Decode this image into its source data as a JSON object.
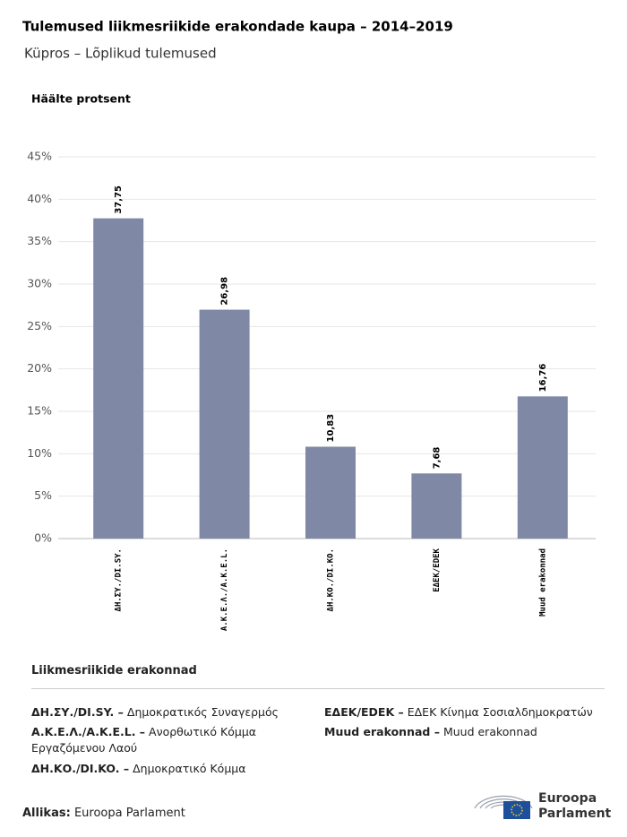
{
  "chart_data": {
    "type": "bar",
    "title": "Tulemused liikmesriikide erakondade kaupa – 2014–2019",
    "subtitle": "Küpros – Lõplikud tulemused",
    "y_axis_label": "Häälte protsent",
    "categories": [
      "ΔΗ.ΣΥ./DI.SY.",
      "A.K.E.Λ./A.K.E.L.",
      "ΔΗ.ΚΟ./DI.KO.",
      "ΕΔΕΚ/EDEK",
      "Muud erakonnad"
    ],
    "values": [
      37.75,
      26.98,
      10.83,
      7.68,
      16.76
    ],
    "value_labels": [
      "37,75",
      "26,98",
      "10,83",
      "7,68",
      "16,76"
    ],
    "color": "#7f89a6",
    "ylim": [
      0,
      45
    ],
    "yticks": [
      {
        "value": 0,
        "label": "0%"
      },
      {
        "value": 5,
        "label": "5%"
      },
      {
        "value": 10,
        "label": "10%"
      },
      {
        "value": 15,
        "label": "15%"
      },
      {
        "value": 20,
        "label": "20%"
      },
      {
        "value": 25,
        "label": "25%"
      },
      {
        "value": 30,
        "label": "30%"
      },
      {
        "value": 35,
        "label": "35%"
      },
      {
        "value": 40,
        "label": "40%"
      },
      {
        "value": 45,
        "label": "45%"
      }
    ],
    "grid": true
  },
  "party_legend": {
    "title": "Liikmesriikide erakonnad",
    "items": [
      {
        "abbr": "ΔΗ.ΣΥ./DI.SY. –",
        "description": "Δημοκρατικός Συναγερμός"
      },
      {
        "abbr": "A.K.E.Λ./A.K.E.L. –",
        "description": "Ανορθωτικό Κόμμα Εργαζόμενου Λαού"
      },
      {
        "abbr": "ΔΗ.ΚΟ./DI.KO. –",
        "description": "Δημοκρατικό Κόμμα"
      },
      {
        "abbr": "ΕΔΕΚ/EDEK –",
        "description": "ΕΔΕΚ Κίνημα Σοσιαλδημοκρατών"
      },
      {
        "abbr": "Muud erakonnad –",
        "description": "Muud erakonnad"
      }
    ]
  },
  "source": {
    "label": "Allikas:",
    "text": "Euroopa Parlament"
  },
  "logo": {
    "line1": "Euroopa",
    "line2": "Parlament"
  }
}
